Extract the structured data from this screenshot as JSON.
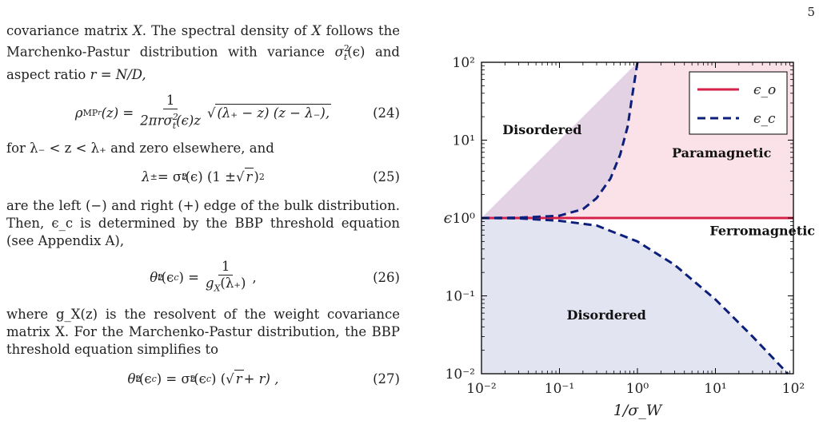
{
  "page_number": "5",
  "text": {
    "p1a": "covariance matrix ",
    "p1_X": "X",
    "p1b": ". The spectral density of ",
    "p1_X2": "X",
    "p1c": " follows the Marchenko-Pastur distribution with variance ",
    "p1_sigma": "σ",
    "p1_sup": "2",
    "p1_sub": "t",
    "p1_eps": "(ϵ)",
    "p1d": " and aspect ratio ",
    "p1_r": "r = N/D,",
    "eq24_lhs": "ρ",
    "eq24_lhs_sub": "MP",
    "eq24_lhs_subsub": "r",
    "eq24_lhs_tail": "(z) =",
    "eq24_num": "1",
    "eq24_den": "2πrσ",
    "eq24_den_sup": "2",
    "eq24_den_sub": "t",
    "eq24_den_tail": "(ϵ)z",
    "eq24_root": "(λ₊ − z) (z − λ₋),",
    "eq24_num_label": "(24)",
    "p2": "for λ₋ < z < λ₊ and zero elsewhere, and",
    "eq25_a": "λ",
    "eq25_a_sub": "±",
    "eq25_b": " = σ",
    "eq25_b_sup": "2",
    "eq25_b_sub": "t",
    "eq25_c": "(ϵ) (1 ± ",
    "eq25_root": "r",
    "eq25_d": ")",
    "eq25_d_sup": "2",
    "eq25_num_label": "(25)",
    "p3": "are the left (−) and right (+) edge of the bulk distribution. Then, ϵ_c is determined by the BBP threshold equation (see Appendix A),",
    "eq26_lhs": "θ",
    "eq26_lhs_sup": "2",
    "eq26_lhs_sub": "t",
    "eq26_lhs_tail": "(ϵ",
    "eq26_lhs_c": "c",
    "eq26_lhs_end": ") =",
    "eq26_num": "1",
    "eq26_den": "g",
    "eq26_den_sub": "X",
    "eq26_den_tail": "(λ₊)",
    "eq26_comma": ",",
    "eq26_num_label": "(26)",
    "p4": "where g_X(z) is the resolvent of the weight covariance matrix X. For the Marchenko-Pastur distribution, the BBP threshold equation simplifies to",
    "eq27_a": "θ",
    "eq27_a_sup": "2",
    "eq27_a_sub": "t",
    "eq27_b": "(ϵ",
    "eq27_b_c": "c",
    "eq27_c": ") = σ",
    "eq27_c_sup": "2",
    "eq27_c_sub": "t",
    "eq27_d": "(ϵ",
    "eq27_d_c": "c",
    "eq27_e": ") (",
    "eq27_root": "r",
    "eq27_f": " + r) ,",
    "eq27_num_label": "(27)"
  },
  "chart_data": {
    "type": "area",
    "xlabel": "1/σ_W",
    "ylabel": "ϵ",
    "x_scale": "log",
    "y_scale": "log",
    "xlim": [
      0.01,
      100
    ],
    "ylim": [
      0.01,
      100
    ],
    "x_ticks": [
      "10⁻²",
      "10⁻¹",
      "10⁰",
      "10¹",
      "10²"
    ],
    "y_ticks": [
      "10⁻²",
      "10⁻¹",
      "10⁰",
      "10¹",
      "10²"
    ],
    "legend_position": "top-right",
    "series": [
      {
        "name": "ϵ_o",
        "style": "solid",
        "color": "#d6224a",
        "x": [
          0.01,
          100
        ],
        "y": [
          1,
          1
        ]
      },
      {
        "name": "ϵ_c",
        "style": "dashed",
        "color": "#0c1f7a",
        "branch": "upper",
        "x": [
          0.01,
          0.03,
          0.1,
          0.2,
          0.3,
          0.45,
          0.6,
          0.75,
          0.85,
          1.0
        ],
        "y": [
          1.0,
          1.01,
          1.07,
          1.3,
          1.8,
          3.2,
          6.5,
          15,
          35,
          100
        ]
      },
      {
        "name": "ϵ_c",
        "style": "dashed",
        "color": "#0c1f7a",
        "branch": "lower",
        "legend": false,
        "x": [
          0.01,
          0.03,
          0.1,
          0.3,
          1,
          3,
          10,
          30,
          85
        ],
        "y": [
          1.0,
          0.99,
          0.92,
          0.8,
          0.5,
          0.25,
          0.09,
          0.03,
          0.01
        ]
      }
    ],
    "regions": [
      {
        "label": "Disordered",
        "color": "#e2d2e3",
        "at": [
          0.06,
          12
        ]
      },
      {
        "label": "Paramagnetic",
        "color": "#fbe2e8",
        "at": [
          12,
          6
        ]
      },
      {
        "label": "Ferromagnetic",
        "color": "#ffffff",
        "at": [
          40,
          0.6
        ]
      },
      {
        "label": "Disordered",
        "color": "#e3e4f2",
        "at": [
          0.4,
          0.05
        ]
      }
    ]
  }
}
